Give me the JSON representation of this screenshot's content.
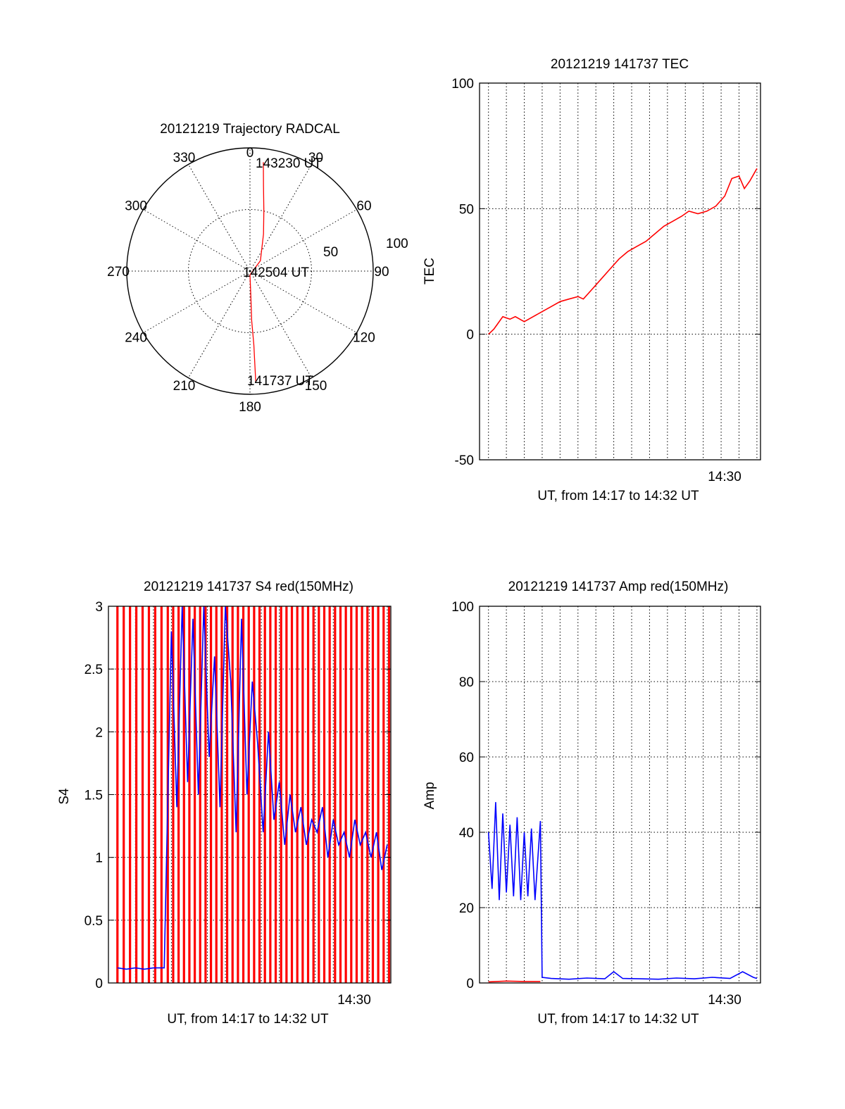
{
  "colors": {
    "red": "#ff0000",
    "blue": "#0000ff",
    "axis": "#000000",
    "background": "#ffffff"
  },
  "chart_data": [
    {
      "type": "polar",
      "title": "20121219 Trajectory RADCAL",
      "angle_labels": [
        "0",
        "30",
        "60",
        "90",
        "120",
        "150",
        "180",
        "210",
        "240",
        "270",
        "300",
        "330"
      ],
      "radius_labels": [
        "50",
        "100"
      ],
      "rlim": [
        0,
        100
      ],
      "direction": "clockwise from top",
      "grid": true,
      "annotations": [
        {
          "text": "143230 UT",
          "azimuth": 7,
          "radius": 89
        },
        {
          "text": "142504 UT",
          "azimuth": 0,
          "radius": 0
        },
        {
          "text": "141737 UT",
          "azimuth": 177,
          "radius": 90
        }
      ],
      "series": [
        {
          "color": "red",
          "points": [
            {
              "azimuth": 7,
              "radius": 89
            },
            {
              "azimuth": 9,
              "radius": 70
            },
            {
              "azimuth": 13,
              "radius": 50
            },
            {
              "azimuth": 20,
              "radius": 32
            },
            {
              "azimuth": 45,
              "radius": 12
            },
            {
              "azimuth": 180,
              "radius": 3
            },
            {
              "azimuth": 178,
              "radius": 20
            },
            {
              "azimuth": 178,
              "radius": 40
            },
            {
              "azimuth": 177,
              "radius": 60
            },
            {
              "azimuth": 177,
              "radius": 78
            },
            {
              "azimuth": 177,
              "radius": 90
            }
          ]
        }
      ]
    },
    {
      "type": "line",
      "title": "20121219 141737 TEC",
      "ylabel": "TEC",
      "xlabel": "UT, from 14:17 to 14:32 UT",
      "x_tick_labels": [
        "14:30"
      ],
      "y_ticks": [
        -50,
        0,
        50,
        100
      ],
      "ylim": [
        -50,
        100
      ],
      "xlim_minutes_after_1417": [
        -0.5,
        15.2
      ],
      "grid": true,
      "series": [
        {
          "color": "red",
          "x_minutes_after_1417": [
            0,
            0.3,
            0.5,
            0.8,
            1.2,
            1.5,
            2.0,
            2.5,
            3.0,
            3.5,
            4.0,
            4.5,
            5.0,
            5.3,
            5.8,
            6.3,
            6.8,
            7.3,
            7.8,
            8.3,
            8.8,
            9.3,
            9.8,
            10.3,
            10.8,
            11.2,
            11.7,
            12.2,
            12.7,
            13.2,
            13.6,
            14.0,
            14.3,
            14.6,
            15.0
          ],
          "values": [
            0,
            2,
            4,
            7,
            6,
            7,
            5,
            7,
            9,
            11,
            13,
            14,
            15,
            14,
            18,
            22,
            26,
            30,
            33,
            35,
            37,
            40,
            43,
            45,
            47,
            49,
            48,
            49,
            51,
            55,
            62,
            63,
            58,
            61,
            66
          ]
        }
      ]
    },
    {
      "type": "line",
      "title": "20121219 141737 S4 red(150MHz)",
      "ylabel": "S4",
      "xlabel": "UT, from 14:17 to 14:32 UT",
      "x_tick_labels": [
        "14:30"
      ],
      "y_ticks": [
        0,
        0.5,
        1,
        1.5,
        2,
        2.5,
        3
      ],
      "y_tick_labels": [
        "0",
        "0.5",
        "1",
        "1.5",
        "2",
        "2.5",
        "3"
      ],
      "ylim": [
        0,
        3
      ],
      "xlim_minutes_after_1417": [
        -0.5,
        15.2
      ],
      "grid": true,
      "series": [
        {
          "color": "red",
          "note_style": "dense vertical spikes from 0 to beyond 3",
          "x_minutes_after_1417": [
            0.0,
            0.35,
            0.7,
            1.05,
            1.4,
            1.75,
            2.1,
            2.45,
            2.8,
            3.1,
            3.4,
            3.7,
            4.0,
            4.3,
            4.6,
            4.9,
            5.2,
            5.5,
            5.8,
            6.1,
            6.4,
            6.7,
            7.0,
            7.3,
            7.6,
            7.9,
            8.2,
            8.5,
            8.8,
            9.1,
            9.4,
            9.7,
            10.0,
            10.3,
            10.6,
            10.9,
            11.2,
            11.5,
            11.8,
            12.1,
            12.4,
            12.7,
            13.0,
            13.3,
            13.6,
            13.9,
            14.2,
            14.5,
            14.8,
            15.1
          ],
          "values": [
            3,
            3,
            3,
            3,
            3,
            3,
            3,
            3,
            3,
            3,
            3,
            3,
            3,
            3,
            3,
            3,
            3,
            3,
            3,
            3,
            3,
            3,
            3,
            3,
            3,
            3,
            3,
            3,
            3,
            3,
            3,
            3,
            3,
            3,
            3,
            3,
            3,
            3,
            3,
            3,
            3,
            3,
            3,
            3,
            3,
            3,
            3,
            3,
            3,
            3
          ]
        },
        {
          "color": "blue",
          "x_minutes_after_1417": [
            0,
            0.5,
            1.0,
            1.5,
            2.0,
            2.6,
            3.0,
            3.3,
            3.6,
            3.9,
            4.2,
            4.5,
            4.8,
            5.1,
            5.4,
            5.7,
            6.0,
            6.3,
            6.6,
            6.9,
            7.2,
            7.5,
            7.8,
            8.1,
            8.4,
            8.7,
            9.0,
            9.3,
            9.6,
            9.9,
            10.2,
            10.5,
            10.8,
            11.1,
            11.4,
            11.7,
            12.0,
            12.3,
            12.6,
            12.9,
            13.2,
            13.5,
            13.8,
            14.1,
            14.4,
            14.7,
            15.0
          ],
          "values": [
            0.12,
            0.11,
            0.12,
            0.11,
            0.12,
            0.12,
            2.8,
            1.4,
            3.0,
            1.6,
            2.9,
            1.5,
            3.0,
            1.8,
            2.6,
            1.4,
            3.0,
            2.4,
            1.2,
            2.9,
            1.5,
            2.4,
            1.9,
            1.2,
            2.0,
            1.3,
            1.6,
            1.1,
            1.5,
            1.2,
            1.4,
            1.1,
            1.3,
            1.2,
            1.4,
            1.0,
            1.3,
            1.1,
            1.2,
            1.0,
            1.3,
            1.1,
            1.2,
            1.0,
            1.2,
            0.9,
            1.1
          ]
        }
      ]
    },
    {
      "type": "line",
      "title": "20121219 141737 Amp red(150MHz)",
      "ylabel": "Amp",
      "xlabel": "UT, from 14:17 to 14:32 UT",
      "x_tick_labels": [
        "14:30"
      ],
      "y_ticks": [
        0,
        20,
        40,
        60,
        80,
        100
      ],
      "ylim": [
        0,
        100
      ],
      "xlim_minutes_after_1417": [
        -0.5,
        15.2
      ],
      "grid": true,
      "series": [
        {
          "color": "blue",
          "note_style": "noisy band 22–48 until ~14:20, then near 1",
          "x_minutes_after_1417": [
            0,
            0.2,
            0.4,
            0.6,
            0.8,
            1.0,
            1.2,
            1.4,
            1.6,
            1.8,
            2.0,
            2.2,
            2.4,
            2.6,
            2.9,
            3.0,
            3.5,
            4.5,
            5.5,
            6.5,
            7.0,
            7.5,
            8.5,
            9.5,
            10.5,
            11.5,
            12.5,
            13.5,
            14.2,
            14.8,
            15.0
          ],
          "values": [
            40,
            25,
            48,
            22,
            45,
            24,
            42,
            23,
            44,
            22,
            40,
            23,
            41,
            22,
            43,
            1.5,
            1.2,
            1.0,
            1.3,
            1.1,
            3.0,
            1.2,
            1.1,
            1.0,
            1.3,
            1.1,
            1.5,
            1.2,
            3.0,
            1.5,
            1.2
          ]
        },
        {
          "color": "red",
          "x_minutes_after_1417": [
            0,
            1.0,
            2.0,
            2.9
          ],
          "values": [
            0.3,
            0.5,
            0.4,
            0.4
          ]
        }
      ]
    }
  ]
}
